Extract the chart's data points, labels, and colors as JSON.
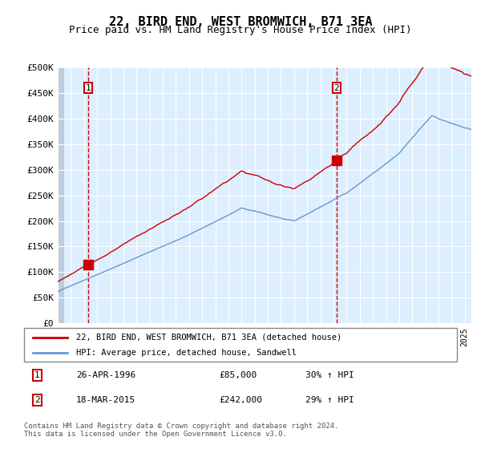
{
  "title": "22, BIRD END, WEST BROMWICH, B71 3EA",
  "subtitle": "Price paid vs. HM Land Registry's House Price Index (HPI)",
  "legend_line1": "22, BIRD END, WEST BROMWICH, B71 3EA (detached house)",
  "legend_line2": "HPI: Average price, detached house, Sandwell",
  "annotation1_label": "1",
  "annotation1_date": "26-APR-1996",
  "annotation1_price": "£85,000",
  "annotation1_hpi": "30% ↑ HPI",
  "annotation2_label": "2",
  "annotation2_date": "18-MAR-2015",
  "annotation2_price": "£242,000",
  "annotation2_hpi": "29% ↑ HPI",
  "footer": "Contains HM Land Registry data © Crown copyright and database right 2024.\nThis data is licensed under the Open Government Licence v3.0.",
  "red_color": "#cc0000",
  "blue_color": "#6699cc",
  "bg_color": "#ddeeff",
  "hatch_color": "#bbccdd",
  "grid_color": "#ffffff",
  "vline_color": "#cc0000",
  "marker_color": "#cc0000",
  "ylim": [
    0,
    500000
  ],
  "yticks": [
    0,
    50000,
    100000,
    150000,
    200000,
    250000,
    300000,
    350000,
    400000,
    450000,
    500000
  ],
  "xstart_year": 1994,
  "xend_year": 2025,
  "sale1_year": 1996.32,
  "sale1_price": 85000,
  "sale2_year": 2015.22,
  "sale2_price": 242000
}
